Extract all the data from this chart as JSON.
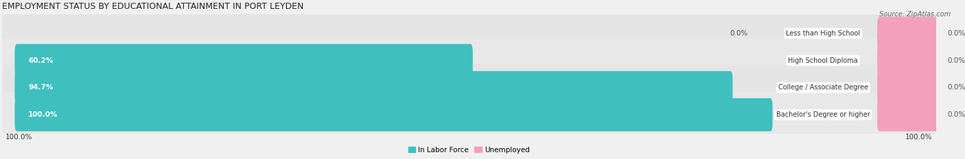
{
  "title": "EMPLOYMENT STATUS BY EDUCATIONAL ATTAINMENT IN PORT LEYDEN",
  "source": "Source: ZipAtlas.com",
  "categories": [
    "Less than High School",
    "High School Diploma",
    "College / Associate Degree",
    "Bachelor's Degree or higher"
  ],
  "in_labor_force": [
    0.0,
    60.2,
    94.7,
    100.0
  ],
  "unemployed": [
    0.0,
    0.0,
    0.0,
    0.0
  ],
  "labor_force_color": "#40BFBF",
  "unemployed_color": "#F2A0BC",
  "bg_color": "#f0f0f0",
  "row_bg_color": "#e8e8e8",
  "row_bg_color_alt": "#ebebeb",
  "title_fontsize": 9,
  "label_fontsize": 7.5,
  "tick_fontsize": 7.5,
  "source_fontsize": 7,
  "x_left_label": "100.0%",
  "x_right_label": "100.0%",
  "legend_labels": [
    "In Labor Force",
    "Unemployed"
  ],
  "max_value": 100.0,
  "bar_height": 0.62,
  "unemployed_bar_width": 8.0
}
